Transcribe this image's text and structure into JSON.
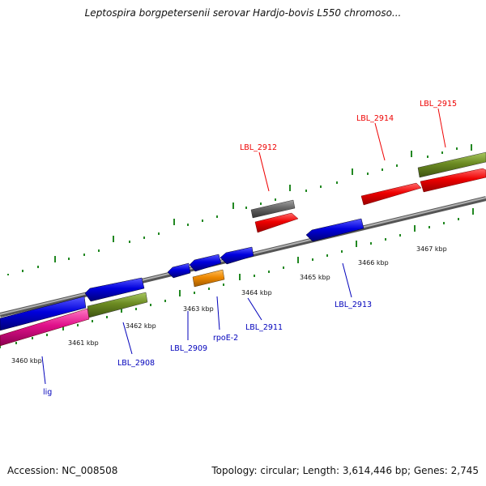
{
  "title": "Leptospira borgpetersenii serovar Hardjo-bovis L550 chromoso...",
  "footer": {
    "accession": "Accession: NC_008508",
    "summary": "Topology: circular; Length: 3,614,446 bp; Genes: 2,745"
  },
  "scale_labels": [
    "3460 kbp",
    "3461 kbp",
    "3462 kbp",
    "3463 kbp",
    "3464 kbp",
    "3465 kbp",
    "3466 kbp",
    "3467 kbp"
  ],
  "gene_labels_top": [
    "LBL_2912",
    "LBL_2914",
    "LBL_2915"
  ],
  "gene_labels_bottom": [
    "lig",
    "LBL_2908",
    "LBL_2909",
    "rpoE-2",
    "LBL_2911",
    "LBL_2913"
  ],
  "colors": {
    "forward_cds": "#ee0000",
    "reverse_cds": "#0000dd",
    "rna": "#e0108a",
    "olive": "#6b8a22",
    "orange": "#ee8800",
    "gray": "#666666",
    "ticks": "#228822",
    "backbone": "#888888"
  }
}
